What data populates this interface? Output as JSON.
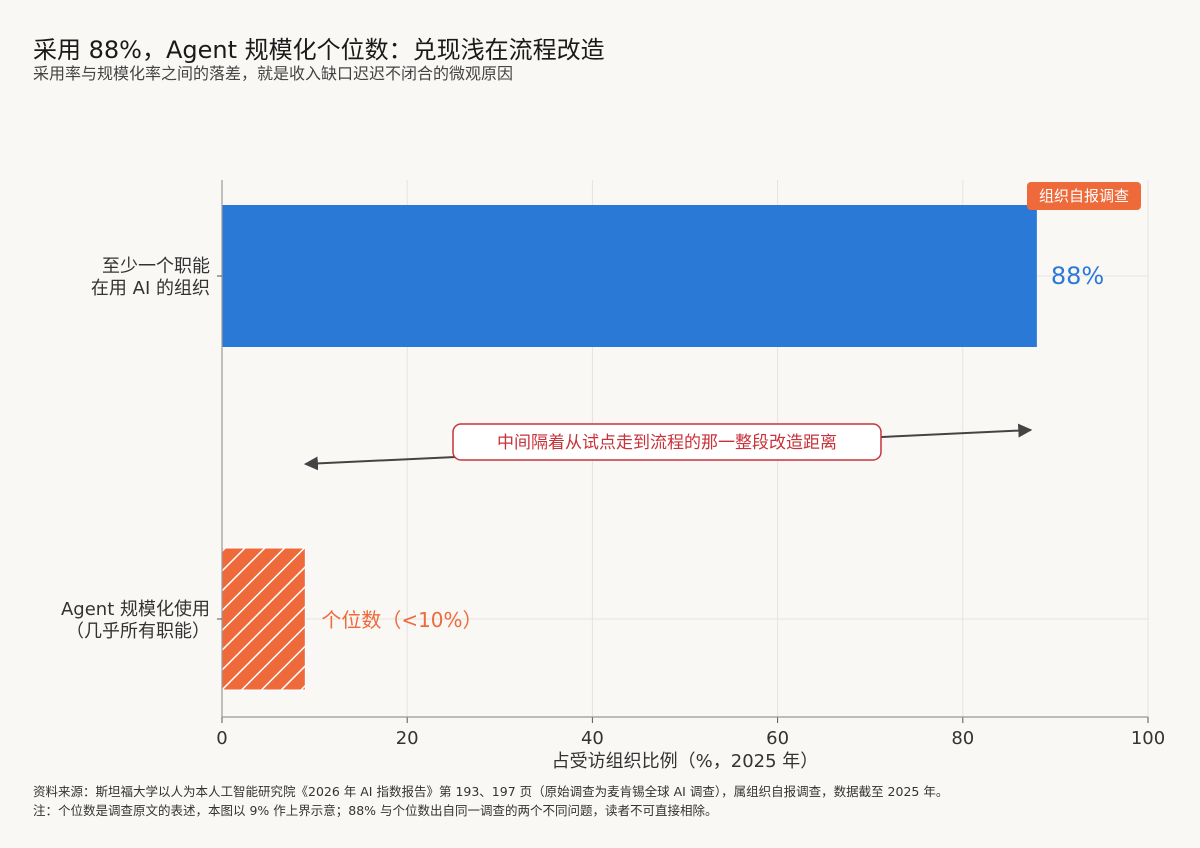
{
  "chart_data": {
    "type": "bar",
    "orientation": "horizontal",
    "title": "采用 88%，Agent 规模化个位数：兑现浅在流程改造",
    "subtitle": "采用率与规模化率之间的落差，就是收入缺口迟迟不闭合的微观原因",
    "xlabel": "占受访组织比例（%，2025 年）",
    "ylabel": "",
    "xlim": [
      0,
      100
    ],
    "xticks": [
      0,
      20,
      40,
      60,
      80,
      100
    ],
    "grid": true,
    "categories": [
      [
        "至少一个职能",
        "在用 AI 的组织"
      ],
      [
        "Agent 规模化使用",
        "（几乎所有职能）"
      ]
    ],
    "values": [
      88,
      9
    ],
    "value_labels": [
      "88%",
      "个位数（<10%）"
    ],
    "colors": [
      "#2b79d6",
      "#ef6a3a"
    ],
    "hatched": [
      false,
      true
    ],
    "tag": {
      "text": "组织自报调查",
      "color": "#ef6a3a"
    },
    "annotation": {
      "text": "中间隔着从试点走到流程的那一整段改造距离",
      "color": "#c8323a",
      "arrow_from": 9,
      "arrow_to": 88
    }
  },
  "footer": {
    "source": "资料来源：斯坦福大学以人为本人工智能研究院《2026 年 AI 指数报告》第 193、197 页（原始调查为麦肯锡全球 AI 调查），属组织自报调查，数据截至 2025 年。",
    "note": "注：个位数是调查原文的表述，本图以 9% 作上界示意；88% 与个位数出自同一调查的两个不同问题，读者不可直接相除。"
  }
}
